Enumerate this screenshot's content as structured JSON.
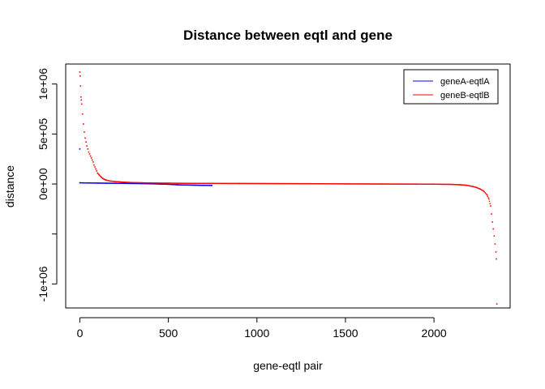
{
  "chart_data": {
    "type": "scatter",
    "title": "Distance between eqtl and gene",
    "xlabel": "gene-eqtl pair",
    "ylabel": "distance",
    "xlim": [
      -80,
      2430
    ],
    "ylim": [
      -1240000,
      1200000
    ],
    "xticks": [
      0,
      500,
      1000,
      1500,
      2000
    ],
    "xtick_labels": [
      "0",
      "500",
      "1000",
      "1500",
      "2000"
    ],
    "yticks": [
      -1000000,
      500000,
      0,
      -500000,
      1000000
    ],
    "ytick_values": [
      -1000000,
      -500000,
      0,
      500000,
      1000000
    ],
    "ytick_labels": [
      "-1e+06",
      "",
      "0e+00",
      "5e+05",
      "1e+06"
    ],
    "grid": false,
    "legend_position": "top-right",
    "series": [
      {
        "name": "geneA-eqtlA",
        "color": "#0000ff",
        "points": [
          [
            0,
            350000
          ],
          [
            0,
            12000
          ],
          [
            20,
            11000
          ],
          [
            50,
            10000
          ],
          [
            100,
            9000
          ],
          [
            150,
            8000
          ],
          [
            200,
            7000
          ],
          [
            250,
            6000
          ],
          [
            300,
            5000
          ],
          [
            350,
            4000
          ],
          [
            400,
            2000
          ],
          [
            450,
            0
          ],
          [
            500,
            -3000
          ],
          [
            550,
            -8000
          ],
          [
            600,
            -10000
          ],
          [
            650,
            -12000
          ],
          [
            700,
            -14000
          ],
          [
            745,
            -15000
          ]
        ]
      },
      {
        "name": "geneB-eqtlB",
        "color": "#ff0000",
        "points": [
          [
            0,
            1120000
          ],
          [
            2,
            1080000
          ],
          [
            4,
            980000
          ],
          [
            6,
            870000
          ],
          [
            8,
            840000
          ],
          [
            10,
            800000
          ],
          [
            15,
            700000
          ],
          [
            20,
            600000
          ],
          [
            25,
            520000
          ],
          [
            30,
            460000
          ],
          [
            35,
            420000
          ],
          [
            40,
            380000
          ],
          [
            45,
            350000
          ],
          [
            50,
            320000
          ],
          [
            55,
            300000
          ],
          [
            60,
            280000
          ],
          [
            65,
            260000
          ],
          [
            70,
            240000
          ],
          [
            75,
            220000
          ],
          [
            80,
            190000
          ],
          [
            85,
            170000
          ],
          [
            90,
            150000
          ],
          [
            95,
            130000
          ],
          [
            100,
            110000
          ],
          [
            110,
            90000
          ],
          [
            120,
            70000
          ],
          [
            130,
            55000
          ],
          [
            140,
            45000
          ],
          [
            150,
            38000
          ],
          [
            170,
            30000
          ],
          [
            200,
            24000
          ],
          [
            250,
            18000
          ],
          [
            300,
            14000
          ],
          [
            400,
            10000
          ],
          [
            500,
            8000
          ],
          [
            700,
            6000
          ],
          [
            900,
            5000
          ],
          [
            1100,
            4000
          ],
          [
            1300,
            3000
          ],
          [
            1500,
            1000
          ],
          [
            1700,
            0
          ],
          [
            1900,
            -1000
          ],
          [
            2000,
            -2000
          ],
          [
            2100,
            -4000
          ],
          [
            2150,
            -8000
          ],
          [
            2180,
            -12000
          ],
          [
            2200,
            -18000
          ],
          [
            2220,
            -25000
          ],
          [
            2240,
            -35000
          ],
          [
            2260,
            -50000
          ],
          [
            2280,
            -70000
          ],
          [
            2300,
            -110000
          ],
          [
            2310,
            -150000
          ],
          [
            2320,
            -220000
          ],
          [
            2325,
            -300000
          ],
          [
            2330,
            -380000
          ],
          [
            2335,
            -450000
          ],
          [
            2340,
            -520000
          ],
          [
            2345,
            -600000
          ],
          [
            2350,
            -680000
          ],
          [
            2352,
            -750000
          ],
          [
            2355,
            -1200000
          ]
        ]
      }
    ]
  }
}
